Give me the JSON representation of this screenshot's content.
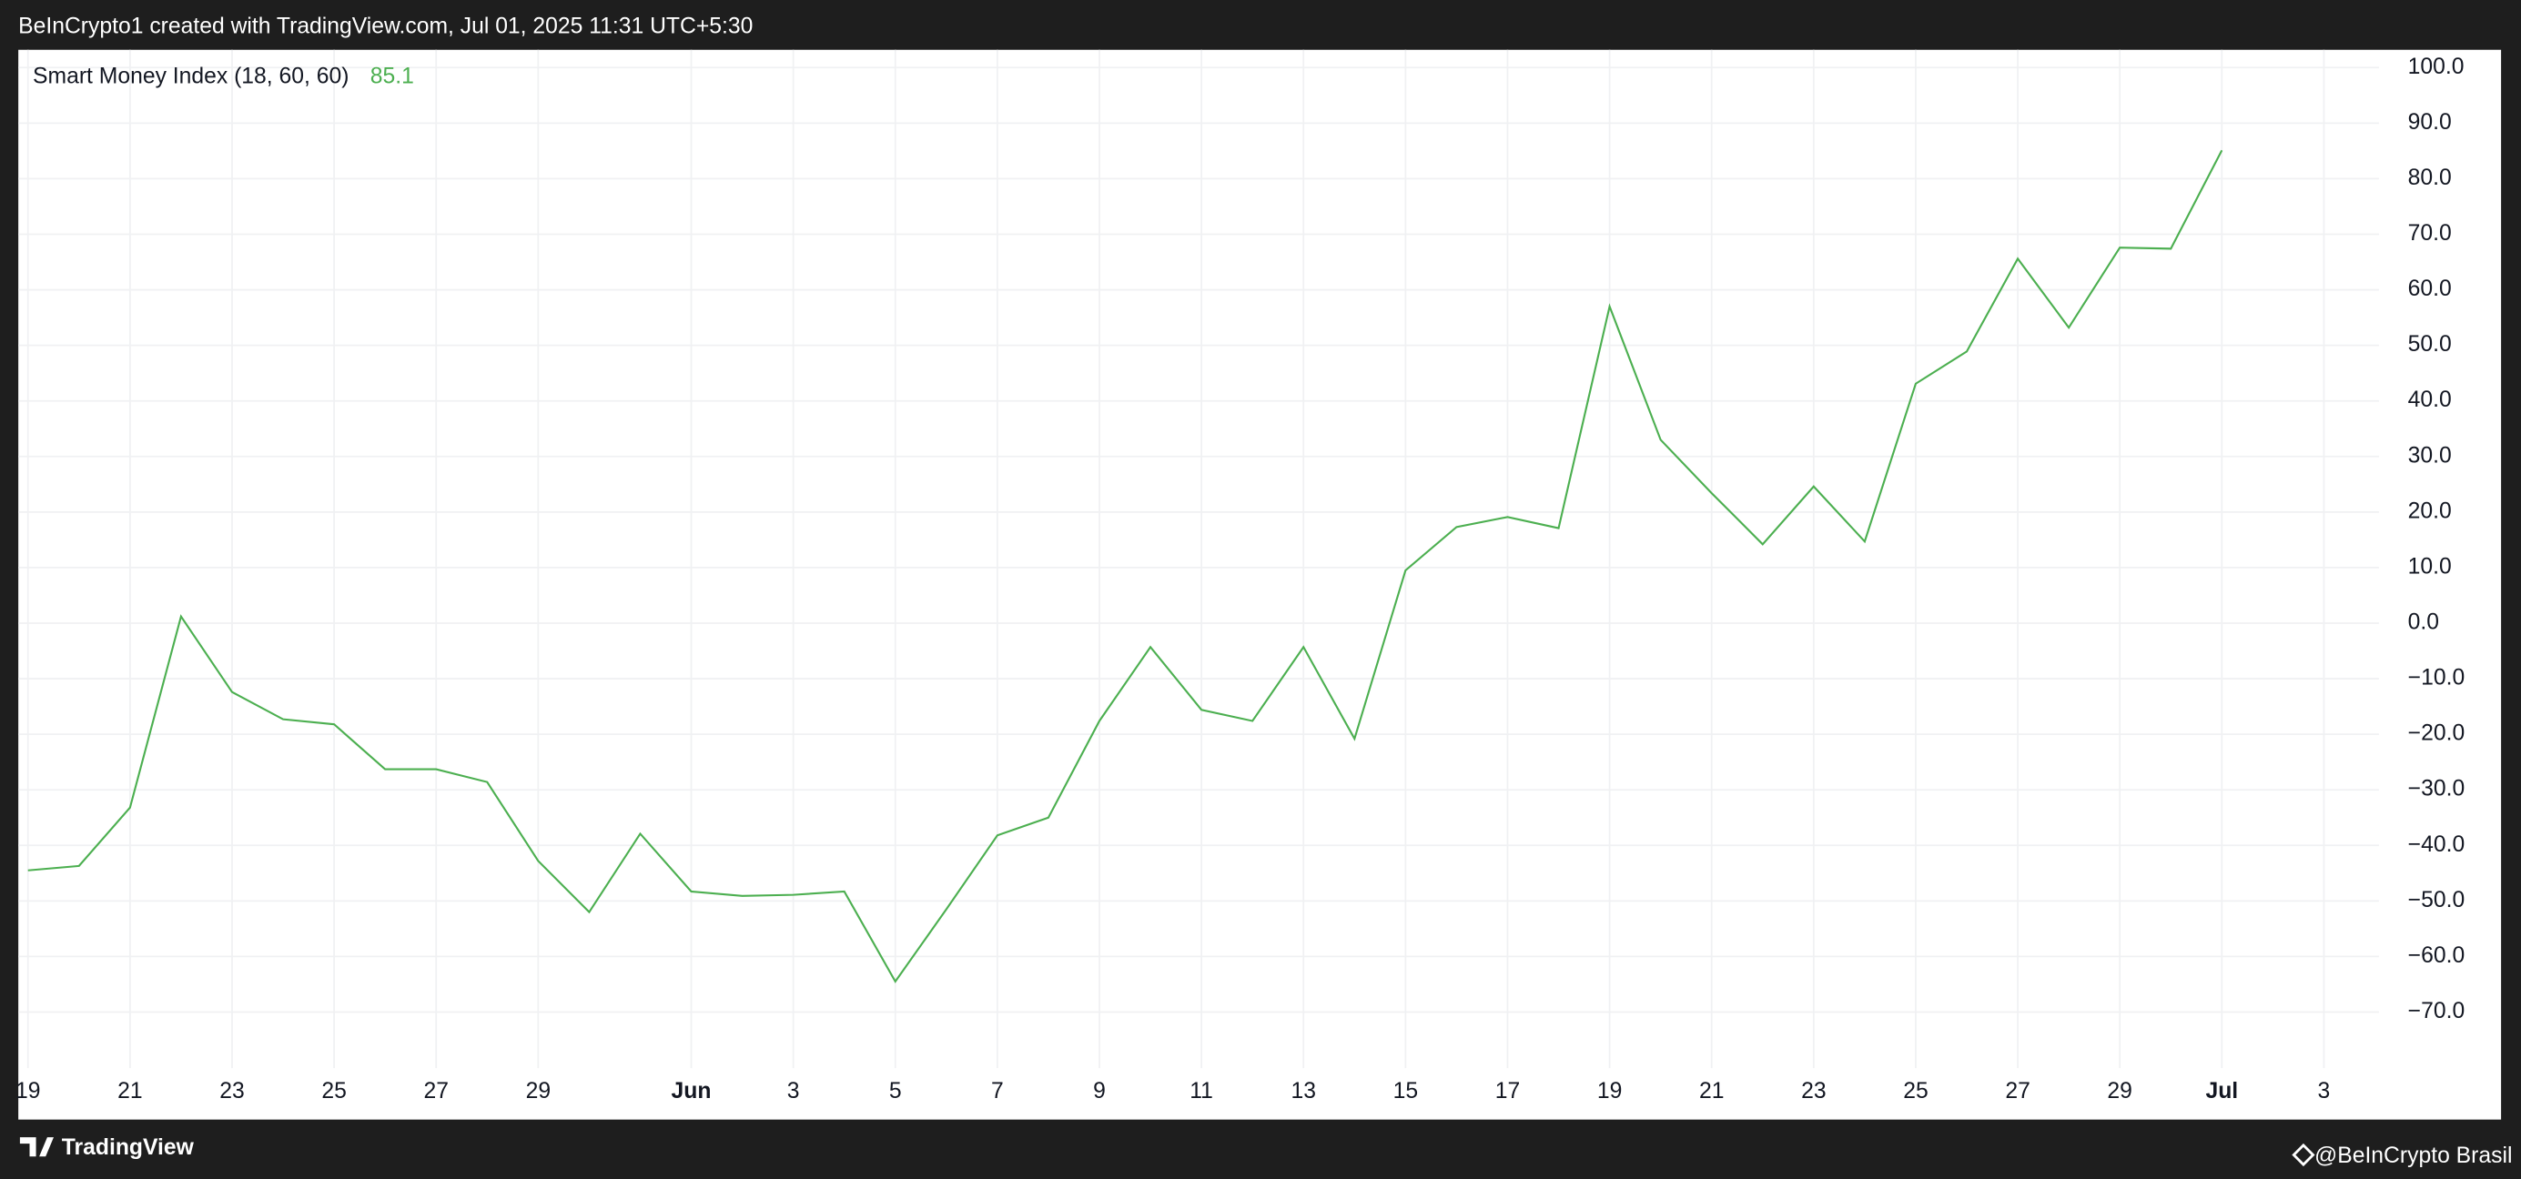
{
  "chart_data": {
    "type": "line",
    "title": "BeInCrypto1 created with TradingView.com, Jul 01, 2025 11:31 UTC+5:30",
    "footer_left": "TradingView",
    "footer_right": "@BeInCrypto Brasil",
    "categories": [
      "19",
      null,
      "21",
      null,
      "23",
      null,
      "25",
      null,
      "27",
      null,
      "29",
      null,
      null,
      "Jun",
      null,
      "3",
      null,
      "5",
      null,
      "7",
      null,
      "9",
      null,
      "11",
      null,
      "13",
      null,
      "15",
      null,
      "17",
      null,
      "19",
      null,
      "21",
      null,
      "23",
      null,
      "25",
      null,
      "27",
      null,
      "29",
      null,
      "Jul",
      null,
      "3"
    ],
    "series": [
      {
        "name": "Smart Money Index (18, 60, 60)",
        "color": "#4caf50",
        "values": [
          -44.5,
          -43.7,
          -33.2,
          1.2,
          -12.4,
          -17.3,
          -18.2,
          -26.3,
          -26.3,
          -28.6,
          -42.8,
          -52.0,
          -37.9,
          -48.3,
          -49.1,
          -48.9,
          -48.3,
          -64.5,
          -51.5,
          -38.2,
          -35.0,
          -17.6,
          -4.3,
          -15.6,
          -17.6,
          -4.3,
          -20.8,
          9.5,
          17.3,
          19.1,
          17.1,
          57.0,
          33.0,
          23.4,
          14.2,
          24.6,
          14.7,
          43.1,
          48.9,
          65.6,
          53.2,
          67.6,
          67.4,
          85.1,
          null,
          null
        ]
      }
    ],
    "ylim": [
      -80.1,
      103.2
    ],
    "yticks": [
      {
        "value": 100,
        "label": "100.0"
      },
      {
        "value": 90,
        "label": "90.0"
      },
      {
        "value": 80,
        "label": "80.0"
      },
      {
        "value": 70,
        "label": "70.0"
      },
      {
        "value": 60,
        "label": "60.0"
      },
      {
        "value": 50,
        "label": "50.0"
      },
      {
        "value": 40,
        "label": "40.0"
      },
      {
        "value": 30,
        "label": "30.0"
      },
      {
        "value": 20,
        "label": "20.0"
      },
      {
        "value": 10,
        "label": "10.0"
      },
      {
        "value": 0,
        "label": "0.0"
      },
      {
        "value": -10,
        "label": "−10.0"
      },
      {
        "value": -20,
        "label": "−20.0"
      },
      {
        "value": -30,
        "label": "−30.0"
      },
      {
        "value": -40,
        "label": "−40.0"
      },
      {
        "value": -50,
        "label": "−50.0"
      },
      {
        "value": -60,
        "label": "−60.0"
      },
      {
        "value": -70,
        "label": "−70.0"
      }
    ],
    "grid": true
  }
}
